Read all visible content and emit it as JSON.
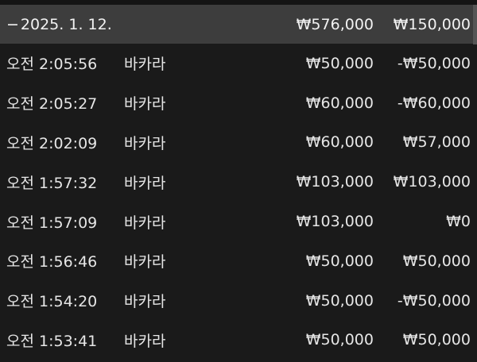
{
  "summary": {
    "toggle": "−",
    "date": "2025. 1. 12.",
    "bet_total": "₩576,000",
    "result_total": "₩150,000"
  },
  "rows": [
    {
      "time": "오전 2:05:56",
      "game": "바카라",
      "bet": "₩50,000",
      "result": "-₩50,000"
    },
    {
      "time": "오전 2:05:27",
      "game": "바카라",
      "bet": "₩60,000",
      "result": "-₩60,000"
    },
    {
      "time": "오전 2:02:09",
      "game": "바카라",
      "bet": "₩60,000",
      "result": "₩57,000"
    },
    {
      "time": "오전 1:57:32",
      "game": "바카라",
      "bet": "₩103,000",
      "result": "₩103,000"
    },
    {
      "time": "오전 1:57:09",
      "game": "바카라",
      "bet": "₩103,000",
      "result": "₩0"
    },
    {
      "time": "오전 1:56:46",
      "game": "바카라",
      "bet": "₩50,000",
      "result": "₩50,000"
    },
    {
      "time": "오전 1:54:20",
      "game": "바카라",
      "bet": "₩50,000",
      "result": "-₩50,000"
    },
    {
      "time": "오전 1:53:41",
      "game": "바카라",
      "bet": "₩50,000",
      "result": "₩50,000"
    }
  ]
}
